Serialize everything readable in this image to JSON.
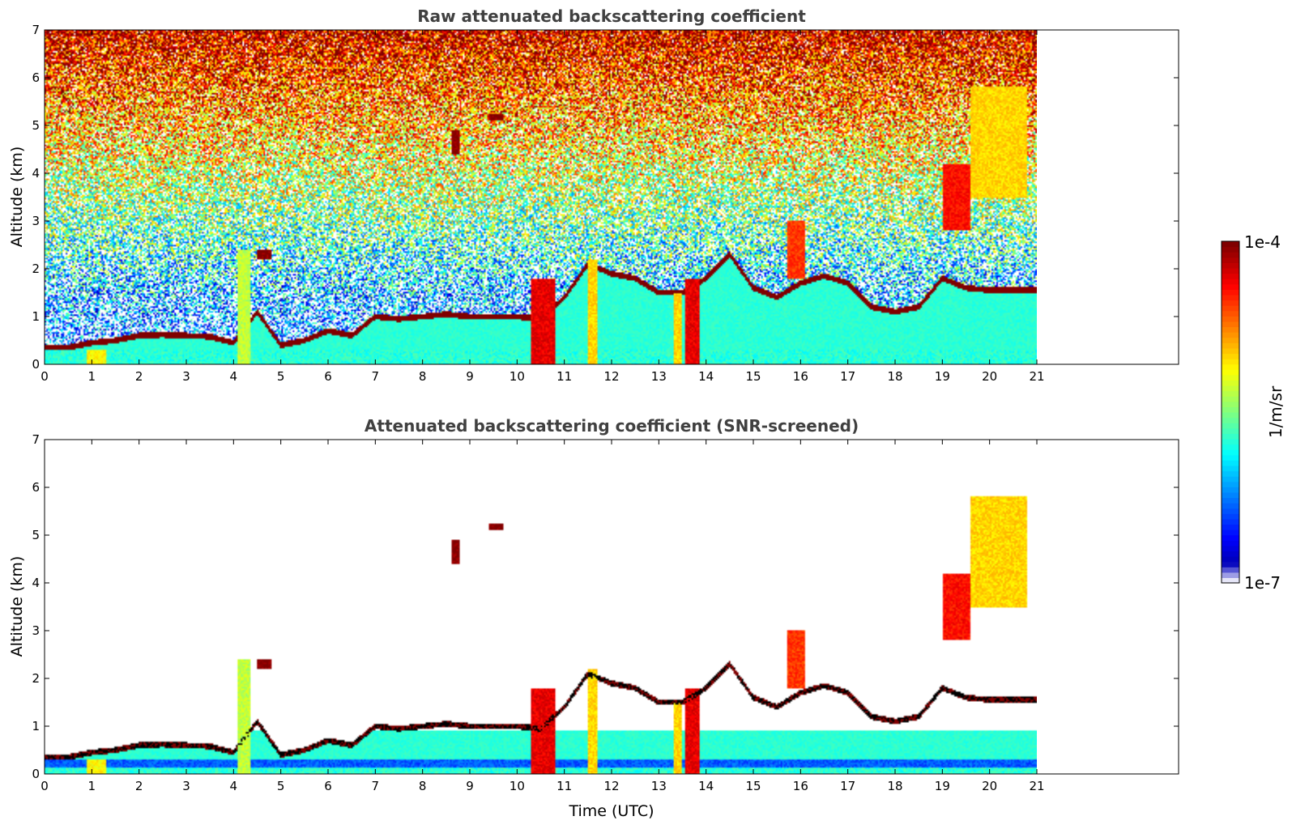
{
  "colormap": "jet",
  "colors": {
    "title": "#404040",
    "lowest_color": "#e6e6f8",
    "cloud_base": "#a01000",
    "snr_outline": "#000000"
  },
  "colorbar": {
    "label": "1/m/sr",
    "max_label": "1e-4",
    "min_label": "1e-7",
    "min": 1e-07,
    "max": 0.0001,
    "scale": "log"
  },
  "chart_data": [
    {
      "type": "heatmap",
      "title": "Raw attenuated backscattering coefficient",
      "xlabel": "",
      "ylabel": "Altitude (km)",
      "xlim": [
        0,
        24
      ],
      "ylim": [
        0,
        7
      ],
      "data_x_range": [
        0,
        21
      ],
      "xticks": [
        0,
        1,
        2,
        3,
        4,
        5,
        6,
        7,
        8,
        9,
        10,
        11,
        12,
        13,
        14,
        15,
        16,
        17,
        18,
        19,
        20,
        21
      ],
      "yticks": [
        0,
        1,
        2,
        3,
        4,
        5,
        6,
        7
      ],
      "grid": false,
      "background_noise": "present, increasing with altitude",
      "cloud_base_trace": {
        "time": [
          0.0,
          0.5,
          1.0,
          1.5,
          2.0,
          2.5,
          3.0,
          3.5,
          4.0,
          4.5,
          5.0,
          5.5,
          6.0,
          6.5,
          7.0,
          7.5,
          8.0,
          8.5,
          9.0,
          9.5,
          10.0,
          10.5,
          11.0,
          11.5,
          12.0,
          12.5,
          13.0,
          13.5,
          14.0,
          14.5,
          15.0,
          15.5,
          16.0,
          16.5,
          17.0,
          17.5,
          18.0,
          18.5,
          19.0,
          19.5,
          20.0
        ],
        "altitude_km": [
          0.35,
          0.35,
          0.45,
          0.5,
          0.6,
          0.62,
          0.6,
          0.58,
          0.45,
          1.1,
          0.4,
          0.5,
          0.7,
          0.6,
          1.0,
          0.95,
          1.0,
          1.05,
          1.0,
          1.0,
          1.0,
          0.95,
          1.4,
          2.1,
          1.9,
          1.8,
          1.5,
          1.5,
          1.8,
          2.3,
          1.6,
          1.4,
          1.7,
          1.85,
          1.7,
          1.2,
          1.1,
          1.2,
          1.8,
          1.6,
          1.55
        ],
        "value": 0.0001
      },
      "features": [
        {
          "name": "precipitation",
          "time": [
            10.3,
            10.8
          ],
          "altitude_km": [
            0,
            1.8
          ],
          "value": 5e-05
        },
        {
          "name": "precipitation",
          "time": [
            11.5,
            11.7
          ],
          "altitude_km": [
            0,
            2.2
          ],
          "value": 1e-05
        },
        {
          "name": "precipitation",
          "time": [
            13.3,
            13.5
          ],
          "altitude_km": [
            0,
            1.5
          ],
          "value": 1e-05
        },
        {
          "name": "precipitation",
          "time": [
            13.55,
            13.85
          ],
          "altitude_km": [
            0,
            1.8
          ],
          "value": 5e-05
        },
        {
          "name": "precipitation",
          "time": [
            4.1,
            4.35
          ],
          "altitude_km": [
            0,
            2.4
          ],
          "value": 5e-06
        },
        {
          "name": "precipitation",
          "time": [
            0.9,
            1.3
          ],
          "altitude_km": [
            0,
            0.3
          ],
          "value": 8e-06
        },
        {
          "name": "cloud",
          "time": [
            15.7,
            16.1
          ],
          "altitude_km": [
            1.8,
            3.0
          ],
          "value": 3e-05
        },
        {
          "name": "cloud",
          "time": [
            19.0,
            19.6
          ],
          "altitude_km": [
            2.8,
            4.2
          ],
          "value": 4e-05
        },
        {
          "name": "cloud",
          "time": [
            19.6,
            20.8
          ],
          "altitude_km": [
            3.5,
            5.8
          ],
          "value": 1e-05
        },
        {
          "name": "cloud",
          "time": [
            4.5,
            4.8
          ],
          "altitude_km": [
            2.2,
            2.4
          ],
          "value": 0.0001
        },
        {
          "name": "cloud",
          "time": [
            9.4,
            9.7
          ],
          "altitude_km": [
            5.1,
            5.25
          ],
          "value": 0.0001
        },
        {
          "name": "cloud",
          "time": [
            8.6,
            8.8
          ],
          "altitude_km": [
            4.4,
            4.9
          ],
          "value": 0.0001
        }
      ]
    },
    {
      "type": "heatmap",
      "title": "Attenuated backscattering coefficient (SNR-screened)",
      "xlabel": "Time (UTC)",
      "ylabel": "Altitude (km)",
      "xlim": [
        0,
        24
      ],
      "ylim": [
        0,
        7
      ],
      "data_x_range": [
        0,
        21
      ],
      "xticks": [
        0,
        1,
        2,
        3,
        4,
        5,
        6,
        7,
        8,
        9,
        10,
        11,
        12,
        13,
        14,
        15,
        16,
        17,
        18,
        19,
        20,
        21
      ],
      "yticks": [
        0,
        1,
        2,
        3,
        4,
        5,
        6,
        7
      ],
      "grid": false,
      "background_noise": "removed",
      "cloud_base_trace": {
        "time": [
          0.0,
          0.5,
          1.0,
          1.5,
          2.0,
          2.5,
          3.0,
          3.5,
          4.0,
          4.5,
          5.0,
          5.5,
          6.0,
          6.5,
          7.0,
          7.5,
          8.0,
          8.5,
          9.0,
          9.5,
          10.0,
          10.5,
          11.0,
          11.5,
          12.0,
          12.5,
          13.0,
          13.5,
          14.0,
          14.5,
          15.0,
          15.5,
          16.0,
          16.5,
          17.0,
          17.5,
          18.0,
          18.5,
          19.0,
          19.5,
          20.0
        ],
        "altitude_km": [
          0.35,
          0.35,
          0.45,
          0.5,
          0.6,
          0.62,
          0.6,
          0.58,
          0.45,
          1.1,
          0.4,
          0.5,
          0.7,
          0.6,
          1.0,
          0.95,
          1.0,
          1.05,
          1.0,
          1.0,
          1.0,
          0.95,
          1.4,
          2.1,
          1.9,
          1.8,
          1.5,
          1.5,
          1.8,
          2.3,
          1.6,
          1.4,
          1.7,
          1.85,
          1.7,
          1.2,
          1.1,
          1.2,
          1.8,
          1.6,
          1.55
        ],
        "value": 0.0001
      },
      "features": [
        {
          "name": "precipitation",
          "time": [
            10.3,
            10.8
          ],
          "altitude_km": [
            0,
            1.8
          ],
          "value": 5e-05
        },
        {
          "name": "precipitation",
          "time": [
            11.5,
            11.7
          ],
          "altitude_km": [
            0,
            2.2
          ],
          "value": 1e-05
        },
        {
          "name": "precipitation",
          "time": [
            13.3,
            13.5
          ],
          "altitude_km": [
            0,
            1.5
          ],
          "value": 1e-05
        },
        {
          "name": "precipitation",
          "time": [
            13.55,
            13.85
          ],
          "altitude_km": [
            0,
            1.8
          ],
          "value": 5e-05
        },
        {
          "name": "precipitation",
          "time": [
            4.1,
            4.35
          ],
          "altitude_km": [
            0,
            2.4
          ],
          "value": 5e-06
        },
        {
          "name": "precipitation",
          "time": [
            0.9,
            1.3
          ],
          "altitude_km": [
            0,
            0.3
          ],
          "value": 8e-06
        },
        {
          "name": "cloud",
          "time": [
            15.7,
            16.1
          ],
          "altitude_km": [
            1.8,
            3.0
          ],
          "value": 3e-05
        },
        {
          "name": "cloud",
          "time": [
            19.0,
            19.6
          ],
          "altitude_km": [
            2.8,
            4.2
          ],
          "value": 4e-05
        },
        {
          "name": "cloud",
          "time": [
            19.6,
            20.8
          ],
          "altitude_km": [
            3.5,
            5.8
          ],
          "value": 1e-05
        },
        {
          "name": "cloud",
          "time": [
            4.5,
            4.8
          ],
          "altitude_km": [
            2.2,
            2.4
          ],
          "value": 0.0001
        },
        {
          "name": "cloud",
          "time": [
            9.4,
            9.7
          ],
          "altitude_km": [
            5.1,
            5.25
          ],
          "value": 0.0001
        },
        {
          "name": "cloud",
          "time": [
            8.6,
            8.8
          ],
          "altitude_km": [
            4.4,
            4.9
          ],
          "value": 0.0001
        }
      ]
    }
  ]
}
